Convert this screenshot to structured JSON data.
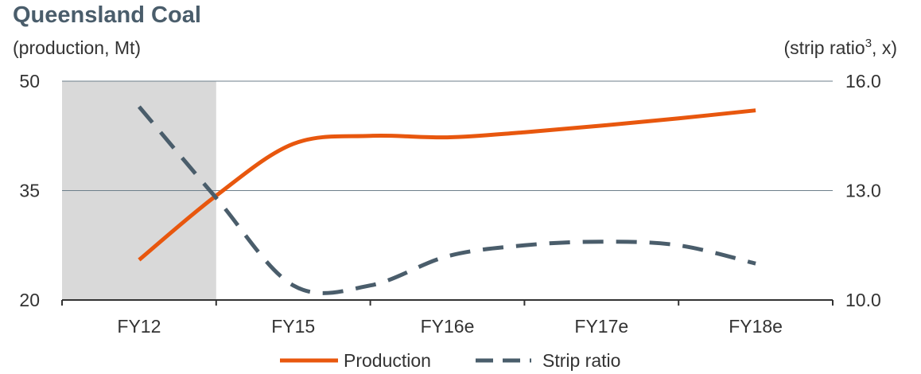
{
  "chart_data": {
    "type": "line",
    "title": "Queensland Coal",
    "ylabel_left": "(production, Mt)",
    "ylabel_right_prefix": "(strip ratio",
    "ylabel_right_sup": "3",
    "ylabel_right_suffix": ", x)",
    "categories": [
      "FY12",
      "FY15",
      "FY16e",
      "FY17e",
      "FY18e"
    ],
    "left_axis": {
      "min": 20,
      "max": 50,
      "ticks": [
        "20",
        "35",
        "50"
      ]
    },
    "right_axis": {
      "min": 10.0,
      "max": 16.0,
      "ticks": [
        "10.0",
        "13.0",
        "16.0"
      ]
    },
    "shaded_band": {
      "from": "FY12",
      "to": "FY15",
      "color": "#d9d9d9"
    },
    "grid": "horizontal",
    "legend_position": "bottom",
    "series": [
      {
        "name": "Production",
        "axis": "left",
        "style": "solid",
        "color": "#e8570e",
        "x": [
          0,
          0.5,
          1,
          1.5,
          2,
          2.5,
          3,
          3.5,
          4
        ],
        "y": [
          25.5,
          34.3,
          41.4,
          42.5,
          42.3,
          43.0,
          43.9,
          44.9,
          46.0
        ]
      },
      {
        "name": "Strip ratio",
        "axis": "right",
        "style": "dashed",
        "color": "#4a5d6b",
        "x": [
          0,
          0.5,
          1,
          1.5,
          2,
          2.5,
          3,
          3.5,
          4
        ],
        "y": [
          15.3,
          12.8,
          10.4,
          10.4,
          11.2,
          11.5,
          11.6,
          11.5,
          11.0
        ]
      }
    ]
  }
}
